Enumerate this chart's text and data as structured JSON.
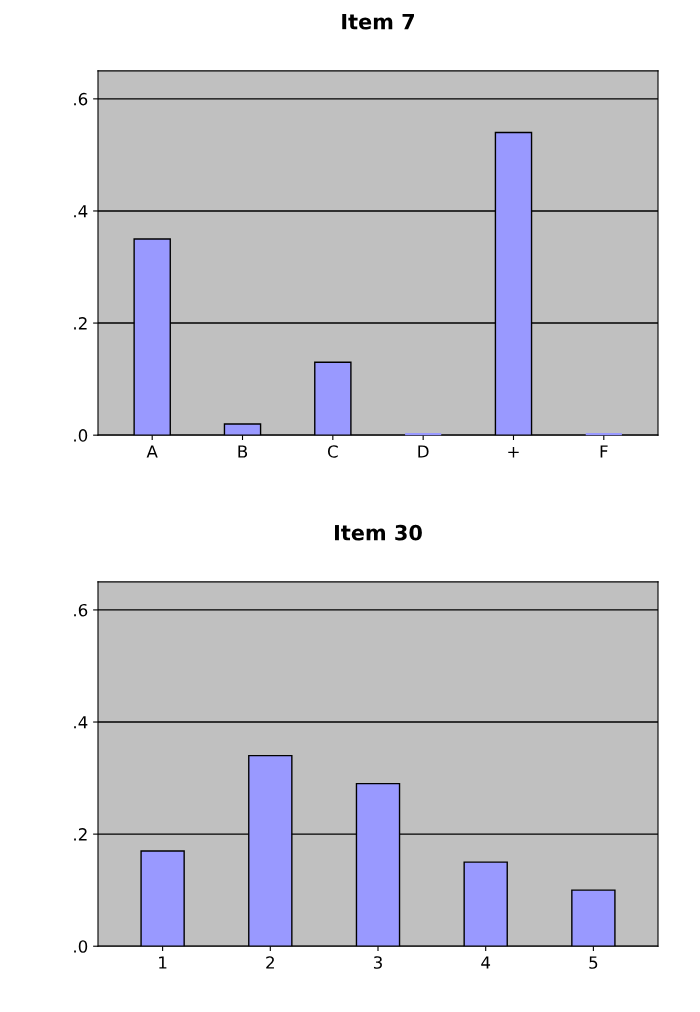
{
  "chart_data": [
    {
      "type": "bar",
      "title": "Item 7",
      "categories": [
        "A",
        "B",
        "C",
        "D",
        "+",
        "F"
      ],
      "values": [
        0.35,
        0.02,
        0.13,
        0,
        0.54,
        0
      ],
      "color": "#9999ff",
      "ylim": [
        0,
        0.65
      ],
      "yticks": [
        {
          "value": 0,
          "label": ".0"
        },
        {
          "value": 0.2,
          "label": ".2"
        },
        {
          "value": 0.4,
          "label": ".4"
        },
        {
          "value": 0.6,
          "label": ".6"
        }
      ],
      "grid": "y"
    },
    {
      "type": "bar",
      "title": "Item 30",
      "categories": [
        "1",
        "2",
        "3",
        "4",
        "5"
      ],
      "values": [
        0.17,
        0.34,
        0.29,
        0.15,
        0.1
      ],
      "color": "#9999ff",
      "ylim": [
        0,
        0.65
      ],
      "yticks": [
        {
          "value": 0,
          "label": ".0"
        },
        {
          "value": 0.2,
          "label": ".2"
        },
        {
          "value": 0.4,
          "label": ".4"
        },
        {
          "value": 0.6,
          "label": ".6"
        }
      ],
      "grid": "y"
    }
  ]
}
